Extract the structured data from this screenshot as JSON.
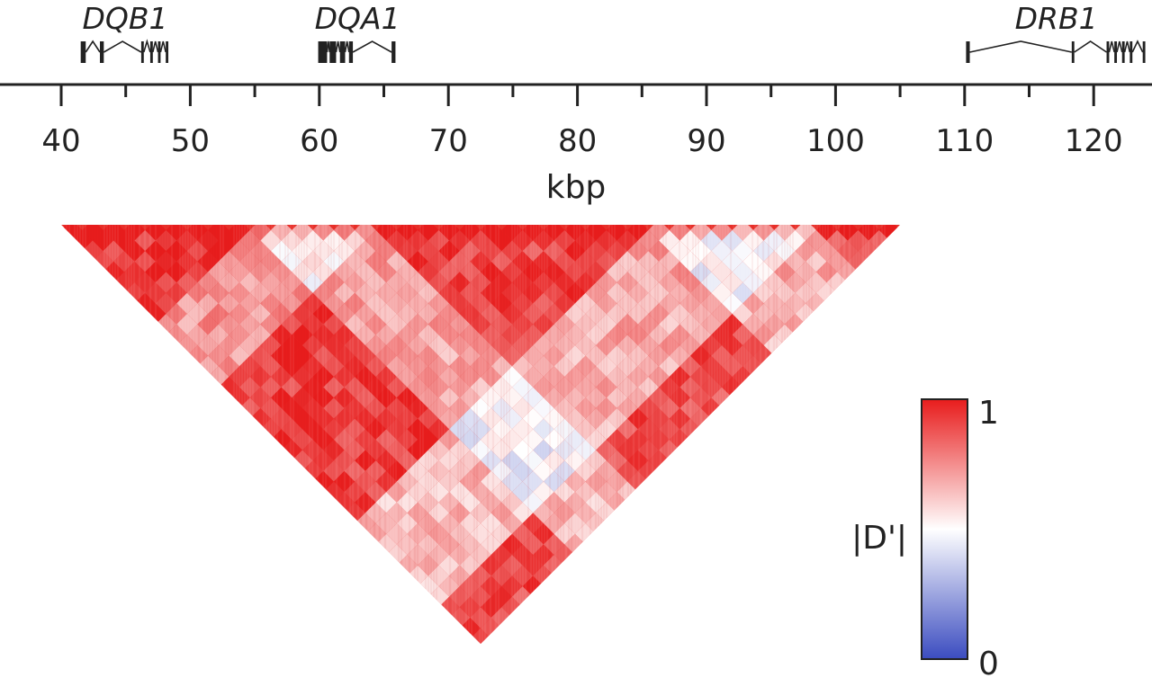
{
  "chart_data": {
    "type": "heatmap",
    "title": "",
    "xlabel": "kbp",
    "xlim": [
      34.7,
      124
    ],
    "x_ticks_major": [
      40,
      50,
      60,
      70,
      80,
      90,
      100,
      110,
      120
    ],
    "x_ticks_minor": [
      35,
      45,
      55,
      65,
      75,
      85,
      95,
      105,
      115
    ],
    "heatmap": {
      "description_shape": "triangle",
      "span_kbp": [
        40,
        105
      ],
      "colorscale": [
        "#3b4cc0",
        "#ffffff",
        "#e81c1c"
      ],
      "colorbar": {
        "label": "|D'|",
        "min_label": "0",
        "max_label": "1",
        "range": [
          0,
          1
        ]
      },
      "blocks": [
        {
          "start": 40,
          "end": 54,
          "value": 0.95
        },
        {
          "start": 54,
          "end": 64,
          "value": 0.55
        },
        {
          "start": 64,
          "end": 86,
          "value": 0.92
        },
        {
          "start": 86,
          "end": 98,
          "value": 0.5
        },
        {
          "start": 98,
          "end": 105,
          "value": 0.9
        }
      ]
    },
    "genes": [
      {
        "name": "DQB1",
        "start": 41.6,
        "end": 48.3,
        "strand": "-",
        "exons": [
          [
            41.6,
            41.9
          ],
          [
            43.0,
            43.3
          ],
          [
            46.2,
            46.4
          ],
          [
            46.9,
            47.1
          ],
          [
            47.5,
            47.7
          ],
          [
            48.1,
            48.3
          ]
        ]
      },
      {
        "name": "DQA1",
        "start": 60.0,
        "end": 65.9,
        "strand": "+",
        "exons": [
          [
            60.0,
            60.6
          ],
          [
            60.8,
            61.3
          ],
          [
            61.6,
            62.0
          ],
          [
            62.3,
            62.6
          ],
          [
            65.6,
            65.9
          ]
        ]
      },
      {
        "name": "DRB1",
        "start": 110.2,
        "end": 124,
        "strand": "-",
        "exons": [
          [
            110.2,
            110.4
          ],
          [
            118.3,
            118.5
          ],
          [
            121.0,
            121.2
          ],
          [
            121.6,
            121.8
          ],
          [
            122.2,
            122.4
          ],
          [
            122.8,
            123.0
          ],
          [
            123.8,
            124
          ]
        ]
      }
    ]
  }
}
